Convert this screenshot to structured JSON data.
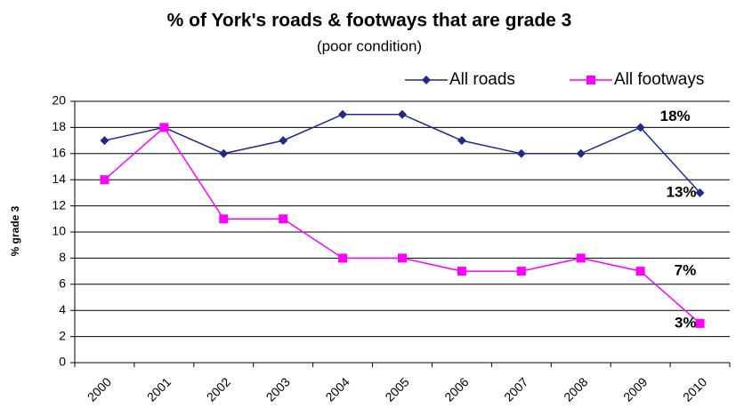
{
  "chart_data": {
    "type": "line",
    "title": "% of York's roads & footways that are grade 3",
    "subtitle": "(poor condition)",
    "y_label": "% grade 3",
    "categories": [
      "2000",
      "2001",
      "2002",
      "2003",
      "2004",
      "2005",
      "2006",
      "2007",
      "2008",
      "2009",
      "2010"
    ],
    "series": [
      {
        "name": "All roads",
        "color": "#1f2a8a",
        "marker": "diamond",
        "values": [
          17,
          18,
          16,
          17,
          19,
          19,
          17,
          16,
          16,
          18,
          13
        ],
        "value_labels": [
          null,
          null,
          null,
          null,
          null,
          null,
          null,
          null,
          null,
          "18%",
          "13%"
        ]
      },
      {
        "name": "All footways",
        "color": "#ff00ff",
        "marker": "square",
        "values": [
          14,
          18,
          11,
          11,
          8,
          8,
          7,
          7,
          8,
          7,
          3
        ],
        "value_labels": [
          null,
          null,
          null,
          null,
          null,
          null,
          null,
          null,
          null,
          "7%",
          "3%"
        ]
      }
    ],
    "ylim": [
      0,
      20
    ],
    "yticks": [
      0,
      2,
      4,
      6,
      8,
      10,
      12,
      14,
      16,
      18,
      20
    ],
    "grid": true,
    "legend": "top-right"
  }
}
